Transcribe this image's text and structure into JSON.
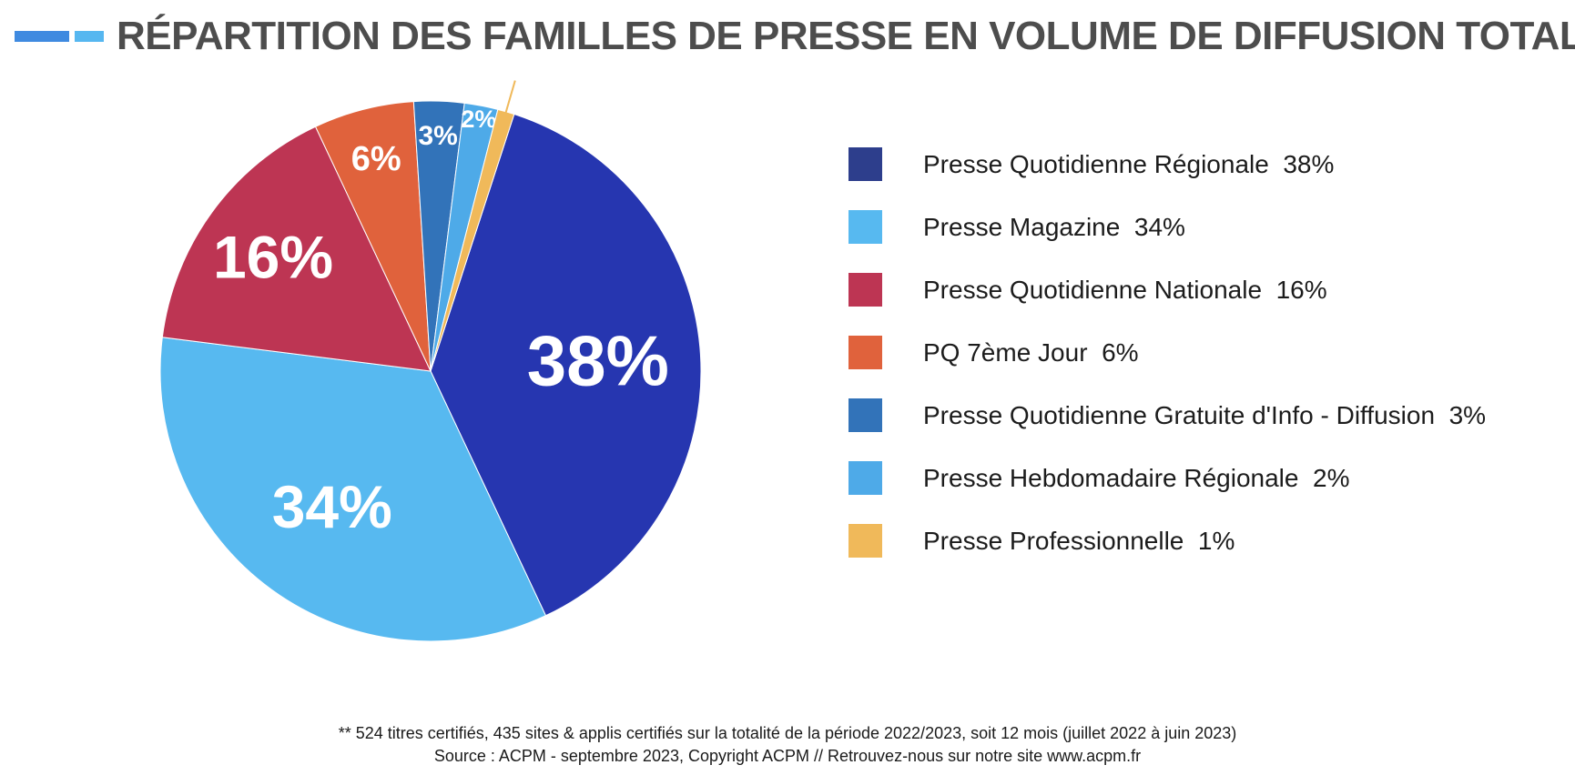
{
  "header": {
    "title": "RÉPARTITION DES FAMILLES DE PRESSE EN VOLUME DE DIFFUSION TOTALE"
  },
  "chart_data": {
    "type": "pie",
    "title": "RÉPARTITION DES FAMILLES DE PRESSE EN VOLUME DE DIFFUSION TOTALE",
    "categories": [
      "Presse Quotidienne Régionale",
      "Presse Magazine",
      "Presse Quotidienne Nationale",
      "PQ 7ème Jour",
      "Presse Quotidienne Gratuite d'Info - Diffusion",
      "Presse Hebdomadaire Régionale",
      "Presse Professionnelle"
    ],
    "values": [
      38,
      34,
      16,
      6,
      3,
      2,
      1
    ],
    "unit": "%",
    "data_labels": [
      "38%",
      "34%",
      "16%",
      "6%",
      "3%",
      "2%",
      "1%"
    ],
    "legend_labels": [
      "Presse Quotidienne Régionale  38%",
      "Presse Magazine  34%",
      "Presse Quotidienne Nationale  16%",
      "PQ 7ème Jour  6%",
      "Presse Quotidienne Gratuite d'Info - Diffusion  3%",
      "Presse Hebdomadaire Régionale  2%",
      "Presse Professionnelle  1%"
    ],
    "colors": [
      "#2636b0",
      "#57b9f0",
      "#bd3553",
      "#e0623c",
      "#3273b9",
      "#4eaae8",
      "#f0b95a"
    ],
    "legend_colors": [
      "#2d3e8c",
      "#57b9f0",
      "#bd3553",
      "#e0623c",
      "#3273b9",
      "#4eaae8",
      "#f0b95a"
    ],
    "legend_position": "right"
  },
  "footer": {
    "note": "** 524 titres certifiés, 435 sites & applis certifiés sur la totalité de la période 2022/2023, soit 12 mois (juillet 2022 à juin 2023)",
    "source": "Source : ACPM - septembre 2023, Copyright ACPM // Retrouvez-nous sur notre site www.acpm.fr"
  }
}
